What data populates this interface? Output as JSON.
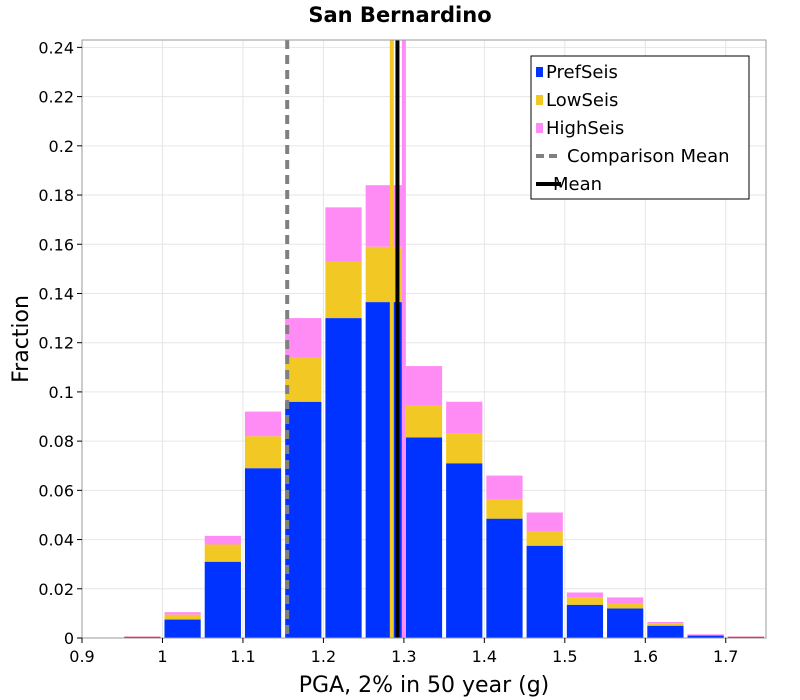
{
  "chart_data": {
    "type": "bar",
    "stacked": true,
    "title": "San Bernardino",
    "xlabel": "PGA, 2% in 50 year (g)",
    "ylabel": "Fraction",
    "xlim": [
      0.9,
      1.75
    ],
    "ylim": [
      0,
      0.243
    ],
    "grid": true,
    "legend_position": "top-right",
    "x_ticks": [
      0.9,
      1.0,
      1.1,
      1.2,
      1.3,
      1.4,
      1.5,
      1.6,
      1.7
    ],
    "x_tick_labels": [
      "0.9",
      "1",
      "1.1",
      "1.2",
      "1.3",
      "1.4",
      "1.5",
      "1.6",
      "1.7"
    ],
    "y_ticks": [
      0,
      0.02,
      0.04,
      0.06,
      0.08,
      0.1,
      0.12,
      0.14,
      0.16,
      0.18,
      0.2,
      0.22,
      0.24
    ],
    "y_tick_labels": [
      "0",
      "0.02",
      "0.04",
      "0.06",
      "0.08",
      "0.1",
      "0.12",
      "0.14",
      "0.16",
      "0.18",
      "0.2",
      "0.22",
      "0.24"
    ],
    "bin_width": 0.05,
    "bin_centers": [
      0.975,
      1.025,
      1.075,
      1.125,
      1.175,
      1.225,
      1.275,
      1.325,
      1.375,
      1.425,
      1.475,
      1.525,
      1.575,
      1.625,
      1.675,
      1.725
    ],
    "series": [
      {
        "name": "PrefSeis",
        "color": "#0033ff",
        "values": [
          0.0005,
          0.0075,
          0.031,
          0.069,
          0.096,
          0.13,
          0.1365,
          0.0815,
          0.071,
          0.0485,
          0.0375,
          0.0135,
          0.012,
          0.005,
          0.001,
          0.0005
        ]
      },
      {
        "name": "LowSeis",
        "color": "#f2c824",
        "values": [
          0.0001,
          0.002,
          0.007,
          0.013,
          0.018,
          0.023,
          0.0225,
          0.013,
          0.012,
          0.008,
          0.006,
          0.003,
          0.002,
          0.001,
          0.0002,
          0.0001
        ]
      },
      {
        "name": "HighSeis",
        "color": "#ff8cf5",
        "values": [
          0.0001,
          0.001,
          0.0035,
          0.01,
          0.016,
          0.022,
          0.025,
          0.016,
          0.013,
          0.0095,
          0.0075,
          0.002,
          0.0025,
          0.0005,
          0.0003,
          0.0001
        ]
      }
    ],
    "vertical_lines": [
      {
        "name": "Comparison Mean",
        "x": 1.155,
        "color": "#808080",
        "style": "dashed"
      },
      {
        "name": "Mean",
        "x": 1.292,
        "color": "#000000",
        "style": "solid"
      },
      {
        "name": "LowSeis mean",
        "x": 1.285,
        "color": "#f2c824",
        "style": "solid"
      },
      {
        "name": "HighSeis mean",
        "x": 1.3,
        "color": "#ff8cf5",
        "style": "solid"
      }
    ],
    "legend": [
      {
        "label": "PrefSeis",
        "kind": "box",
        "color": "#0033ff"
      },
      {
        "label": "LowSeis",
        "kind": "box",
        "color": "#f2c824"
      },
      {
        "label": "HighSeis",
        "kind": "box",
        "color": "#ff8cf5"
      },
      {
        "label": "Comparison Mean",
        "kind": "dashed",
        "color": "#808080"
      },
      {
        "label": "Mean",
        "kind": "line",
        "color": "#000000"
      }
    ]
  }
}
